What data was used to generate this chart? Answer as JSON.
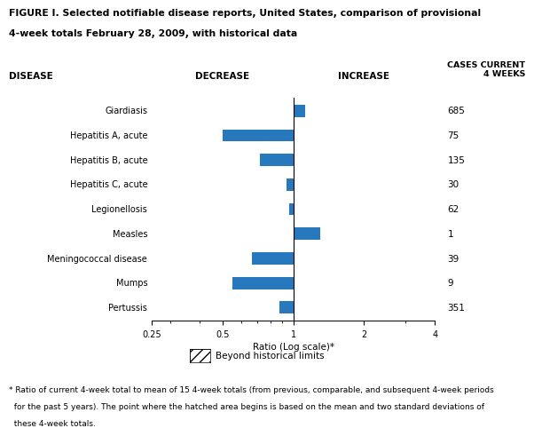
{
  "title_line1": "FIGURE I. Selected notifiable disease reports, United States, comparison of provisional",
  "title_line2": "4-week totals February 28, 2009, with historical data",
  "diseases": [
    "Giardiasis",
    "Hepatitis A, acute",
    "Hepatitis B, acute",
    "Hepatitis C, acute",
    "Legionellosis",
    "Measles",
    "Meningococcal disease",
    "Mumps",
    "Pertussis"
  ],
  "ratios": [
    1.12,
    0.5,
    0.72,
    0.94,
    0.96,
    1.3,
    0.67,
    0.55,
    0.87
  ],
  "cases": [
    "685",
    "75",
    "135",
    "30",
    "62",
    "1",
    "39",
    "9",
    "351"
  ],
  "bar_color": "#2878BE",
  "xlim_log": [
    0.25,
    4.0
  ],
  "xticks": [
    0.25,
    0.5,
    1.0,
    2.0,
    4.0
  ],
  "xtick_labels": [
    "0.25",
    "0.5",
    "1",
    "2",
    "4"
  ],
  "xlabel": "Ratio (Log scale)*",
  "header_disease": "DISEASE",
  "header_decrease": "DECREASE",
  "header_increase": "INCREASE",
  "header_cases": "CASES CURRENT\n4 WEEKS",
  "legend_label": "Beyond historical limits",
  "footnote1": "* Ratio of current 4-week total to mean of 15 4-week totals (from previous, comparable, and subsequent 4-week periods",
  "footnote2": "  for the past 5 years). The point where the hatched area begins is based on the mean and two standard deviations of",
  "footnote3": "  these 4-week totals.",
  "background_color": "#ffffff"
}
